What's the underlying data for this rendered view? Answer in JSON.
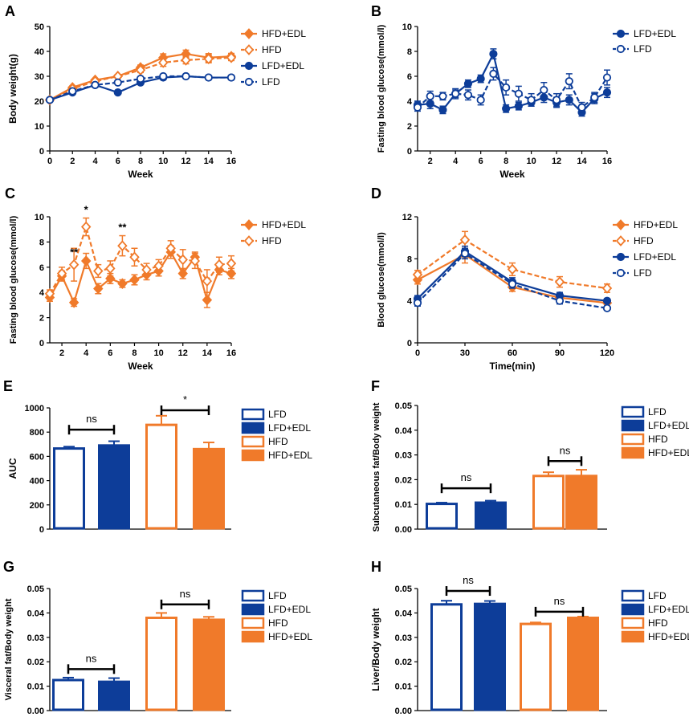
{
  "colors": {
    "orange": "#f07a2a",
    "blue": "#0d3d99"
  },
  "chart_data": [
    {
      "panel": "A",
      "type": "line",
      "xlabel": "Week",
      "ylabel": "Body weight(g)",
      "xlim": [
        0,
        16
      ],
      "ylim": [
        0,
        50
      ],
      "xticks": [
        0,
        2,
        4,
        6,
        8,
        10,
        12,
        14,
        16
      ],
      "yticks": [
        0,
        10,
        20,
        30,
        40,
        50
      ],
      "legend": "right",
      "series": [
        {
          "name": "HFD+EDL",
          "color": "orange",
          "marker": "diamond",
          "fill": true,
          "dash": false,
          "x": [
            0,
            2,
            4,
            6,
            8,
            10,
            12,
            14,
            16
          ],
          "y": [
            20.5,
            25.5,
            28.5,
            30,
            33.5,
            37.5,
            39,
            37.5,
            38
          ],
          "err": [
            0.5,
            0.6,
            0.6,
            0.7,
            1,
            1.5,
            1.5,
            1.6,
            1.2
          ]
        },
        {
          "name": "HFD",
          "color": "orange",
          "marker": "diamond",
          "fill": false,
          "dash": true,
          "x": [
            0,
            2,
            4,
            6,
            8,
            10,
            12,
            14,
            16
          ],
          "y": [
            20.5,
            25,
            28,
            30,
            32.5,
            35.5,
            36.5,
            37,
            37.5
          ],
          "err": [
            0.5,
            0.6,
            0.6,
            0.7,
            1,
            1.5,
            1.5,
            1.6,
            1.2
          ]
        },
        {
          "name": "LFD+EDL",
          "color": "blue",
          "marker": "circle",
          "fill": true,
          "dash": false,
          "x": [
            0,
            2,
            4,
            6,
            8,
            10,
            12,
            14,
            16
          ],
          "y": [
            20.5,
            23.5,
            26.5,
            23.5,
            27.5,
            29.5,
            30,
            29.5,
            29.5
          ],
          "err": [
            0.4,
            0.5,
            0.5,
            0.5,
            0.6,
            0.6,
            0.6,
            0.6,
            0.6
          ]
        },
        {
          "name": "LFD",
          "color": "blue",
          "marker": "circle",
          "fill": false,
          "dash": true,
          "x": [
            0,
            2,
            4,
            6,
            8,
            10,
            12,
            14,
            16
          ],
          "y": [
            20.5,
            24,
            26.5,
            27.5,
            29,
            30,
            30,
            29.5,
            29.5
          ],
          "err": [
            0.4,
            0.5,
            0.5,
            0.5,
            0.6,
            0.6,
            0.6,
            0.6,
            0.6
          ]
        }
      ]
    },
    {
      "panel": "B",
      "type": "line",
      "xlabel": "Week",
      "ylabel": "Fasting blood glucose(mmol/l)",
      "xlim": [
        1,
        16
      ],
      "ylim": [
        0,
        10
      ],
      "xticks": [
        2,
        4,
        6,
        8,
        10,
        12,
        14,
        16
      ],
      "yticks": [
        0,
        2,
        4,
        6,
        8,
        10
      ],
      "legend": "top-right",
      "series": [
        {
          "name": "LFD+EDL",
          "color": "blue",
          "marker": "circle",
          "fill": true,
          "dash": false,
          "x": [
            1,
            2,
            3,
            4,
            5,
            6,
            7,
            8,
            9,
            10,
            11,
            12,
            13,
            14,
            15,
            16
          ],
          "y": [
            3.7,
            3.8,
            3.3,
            4.6,
            5.4,
            5.8,
            7.8,
            3.4,
            3.6,
            3.9,
            4.3,
            3.9,
            4.1,
            3.1,
            4.2,
            4.7
          ],
          "err": [
            0.3,
            0.4,
            0.3,
            0.3,
            0.3,
            0.3,
            0.4,
            0.3,
            0.3,
            0.3,
            0.4,
            0.4,
            0.4,
            0.3,
            0.4,
            0.4
          ]
        },
        {
          "name": "LFD",
          "color": "blue",
          "marker": "circle",
          "fill": false,
          "dash": true,
          "x": [
            1,
            2,
            3,
            4,
            5,
            6,
            7,
            8,
            9,
            10,
            11,
            12,
            13,
            14,
            15,
            16
          ],
          "y": [
            3.5,
            4.4,
            4.4,
            4.6,
            4.5,
            4.1,
            6.2,
            5.1,
            4.6,
            4.1,
            4.9,
            4.1,
            5.6,
            3.5,
            4.3,
            5.9
          ],
          "err": [
            0.3,
            0.4,
            0.3,
            0.4,
            0.4,
            0.4,
            0.5,
            0.6,
            0.6,
            0.5,
            0.6,
            0.5,
            0.6,
            0.4,
            0.4,
            0.6
          ]
        }
      ]
    },
    {
      "panel": "C",
      "type": "line",
      "xlabel": "Week",
      "ylabel": "Fasting blood glucose(mmol/l)",
      "xlim": [
        1,
        16
      ],
      "ylim": [
        0,
        10
      ],
      "xticks": [
        2,
        4,
        6,
        8,
        10,
        12,
        14,
        16
      ],
      "yticks": [
        0,
        2,
        4,
        6,
        8,
        10
      ],
      "legend": "top-right",
      "annotations": [
        {
          "text": "**",
          "x": 3,
          "y": 6.9
        },
        {
          "text": "*",
          "x": 4,
          "y": 10.3
        },
        {
          "text": "**",
          "x": 7,
          "y": 8.9
        }
      ],
      "series": [
        {
          "name": "HFD+EDL",
          "color": "orange",
          "marker": "diamond",
          "fill": true,
          "dash": false,
          "x": [
            1,
            2,
            3,
            4,
            5,
            6,
            7,
            8,
            9,
            10,
            11,
            12,
            13,
            14,
            15,
            16
          ],
          "y": [
            3.6,
            5.3,
            3.2,
            6.5,
            4.3,
            5.1,
            4.7,
            5,
            5.4,
            5.7,
            7.2,
            5.5,
            6.8,
            3.4,
            5.8,
            5.5
          ],
          "err": [
            0.3,
            0.4,
            0.3,
            0.6,
            0.4,
            0.4,
            0.3,
            0.4,
            0.4,
            0.4,
            0.5,
            0.4,
            0.4,
            0.6,
            0.4,
            0.4
          ]
        },
        {
          "name": "HFD",
          "color": "orange",
          "marker": "diamond",
          "fill": false,
          "dash": true,
          "x": [
            1,
            2,
            3,
            4,
            5,
            6,
            7,
            8,
            9,
            10,
            11,
            12,
            13,
            14,
            15,
            16
          ],
          "y": [
            3.9,
            5.5,
            6.2,
            9.2,
            5.7,
            5.9,
            7.7,
            6.8,
            5.8,
            6.1,
            7.5,
            6.6,
            6.5,
            4.9,
            6.2,
            6.3
          ],
          "err": [
            0.3,
            0.5,
            1.3,
            0.7,
            0.5,
            0.6,
            0.8,
            0.7,
            0.5,
            0.5,
            0.6,
            0.8,
            0.6,
            0.9,
            0.6,
            0.6
          ]
        }
      ]
    },
    {
      "panel": "D",
      "type": "line",
      "xlabel": "Time(min)",
      "ylabel": "Blood glucose(mmol/l)",
      "xlim": [
        0,
        120
      ],
      "ylim": [
        0,
        12
      ],
      "xticks": [
        0,
        30,
        60,
        90,
        120
      ],
      "yticks": [
        0,
        4,
        8,
        12
      ],
      "legend": "right",
      "series": [
        {
          "name": "HFD+EDL",
          "color": "orange",
          "marker": "diamond",
          "fill": true,
          "dash": false,
          "x": [
            0,
            30,
            60,
            90,
            120
          ],
          "y": [
            6,
            8.4,
            5.3,
            4.3,
            3.8
          ],
          "err": [
            0.4,
            0.8,
            0.4,
            0.3,
            0.3
          ]
        },
        {
          "name": "HFD",
          "color": "orange",
          "marker": "diamond",
          "fill": false,
          "dash": true,
          "x": [
            0,
            30,
            60,
            90,
            120
          ],
          "y": [
            6.5,
            9.8,
            7,
            5.8,
            5.2
          ],
          "err": [
            0.4,
            0.8,
            0.6,
            0.5,
            0.4
          ]
        },
        {
          "name": "LFD+EDL",
          "color": "blue",
          "marker": "circle",
          "fill": true,
          "dash": false,
          "x": [
            0,
            30,
            60,
            90,
            120
          ],
          "y": [
            4.2,
            8.7,
            5.8,
            4.5,
            4
          ],
          "err": [
            0.3,
            0.5,
            0.4,
            0.3,
            0.2
          ]
        },
        {
          "name": "LFD",
          "color": "blue",
          "marker": "circle",
          "fill": false,
          "dash": true,
          "x": [
            0,
            30,
            60,
            90,
            120
          ],
          "y": [
            3.8,
            8.5,
            5.6,
            4,
            3.3
          ],
          "err": [
            0.3,
            0.5,
            0.4,
            0.3,
            0.2
          ]
        }
      ]
    },
    {
      "panel": "E",
      "type": "bar",
      "ylabel": "AUC",
      "ylim": [
        0,
        1000
      ],
      "yticks": [
        0,
        200,
        400,
        600,
        800,
        1000
      ],
      "categories": [
        "LFD",
        "LFD+EDL",
        "HFD",
        "HFD+EDL"
      ],
      "values": [
        665,
        690,
        860,
        660
      ],
      "errors": [
        15,
        35,
        75,
        55
      ],
      "legend": "right",
      "significance": [
        {
          "text": "ns",
          "pair": [
            0,
            1
          ],
          "y": 820
        },
        {
          "text": "*",
          "pair": [
            2,
            3
          ],
          "y": 980
        }
      ]
    },
    {
      "panel": "F",
      "type": "bar",
      "ylabel": "Subcutaneous fat/Body weight",
      "ylim": [
        0,
        0.05
      ],
      "yticks": [
        0.0,
        0.01,
        0.02,
        0.03,
        0.04,
        0.05
      ],
      "categories": [
        "LFD",
        "LFD+EDL",
        "HFD",
        "HFD+EDL"
      ],
      "values": [
        0.0102,
        0.0107,
        0.0215,
        0.0215
      ],
      "errors": [
        0.0005,
        0.0008,
        0.0015,
        0.0025
      ],
      "legend": "right",
      "significance": [
        {
          "text": "ns",
          "pair": [
            0,
            1
          ],
          "y": 0.0165
        },
        {
          "text": "ns",
          "pair": [
            2,
            3
          ],
          "y": 0.0275
        }
      ]
    },
    {
      "panel": "G",
      "type": "bar",
      "ylabel": "Visceral fat/Body weight",
      "ylim": [
        0,
        0.05
      ],
      "yticks": [
        0.0,
        0.01,
        0.02,
        0.03,
        0.04,
        0.05
      ],
      "categories": [
        "LFD",
        "LFD+EDL",
        "HFD",
        "HFD+EDL"
      ],
      "values": [
        0.0125,
        0.0118,
        0.038,
        0.0372
      ],
      "errors": [
        0.001,
        0.0015,
        0.002,
        0.0012
      ],
      "legend": "right",
      "significance": [
        {
          "text": "ns",
          "pair": [
            0,
            1
          ],
          "y": 0.017
        },
        {
          "text": "ns",
          "pair": [
            2,
            3
          ],
          "y": 0.0435
        }
      ]
    },
    {
      "panel": "H",
      "type": "bar",
      "ylabel": "Liver/Body weight",
      "ylim": [
        0,
        0.05
      ],
      "yticks": [
        0.0,
        0.01,
        0.02,
        0.03,
        0.04,
        0.05
      ],
      "categories": [
        "LFD",
        "LFD+EDL",
        "HFD",
        "HFD+EDL"
      ],
      "values": [
        0.0435,
        0.0437,
        0.0355,
        0.038
      ],
      "errors": [
        0.0015,
        0.0012,
        0.0006,
        0.0005
      ],
      "legend": "right",
      "significance": [
        {
          "text": "ns",
          "pair": [
            0,
            1
          ],
          "y": 0.049
        },
        {
          "text": "ns",
          "pair": [
            2,
            3
          ],
          "y": 0.0405
        }
      ]
    }
  ]
}
